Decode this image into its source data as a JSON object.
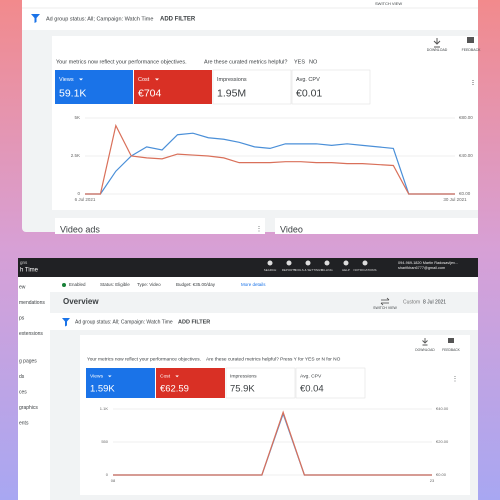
{
  "top": {
    "switch_view": "SWITCH VIEW",
    "filter": "Ad group status: All; Campaign: Watch Time",
    "add_filter": "ADD FILTER",
    "download": "DOWNLOAD",
    "feedback": "FEEDBACK",
    "metrics_note": "Your metrics now reflect your performance objectives.",
    "helpful": "Are these curated metrics helpful?",
    "yes": "YES",
    "no": "NO",
    "metrics": [
      {
        "label": "Views",
        "value": "59.1K"
      },
      {
        "label": "Cost",
        "value": "€704"
      },
      {
        "label": "Impressions",
        "value": "1.95M"
      },
      {
        "label": "Avg. CPV",
        "value": "€0.01"
      }
    ],
    "chart": {
      "type": "line",
      "categories": [
        "6 Jul 2021",
        null,
        null,
        null,
        null,
        null,
        null,
        null,
        null,
        null,
        null,
        null,
        null,
        null,
        null,
        null,
        null,
        null,
        null,
        null,
        null,
        null,
        null,
        null,
        "30 Jul 2021"
      ],
      "series": [
        {
          "color": "#4a8fd8",
          "values": [
            0,
            0,
            1500,
            2500,
            3100,
            2900,
            3900,
            4000,
            3700,
            3600,
            3400,
            3100,
            3000,
            3300,
            3300,
            3300,
            3200,
            3300,
            3200,
            3100,
            3000,
            0,
            0,
            0,
            0
          ]
        },
        {
          "color": "#d9705a",
          "axis": "y2",
          "values": [
            0,
            0,
            72,
            40,
            38,
            37,
            42,
            41,
            40,
            38,
            33,
            33,
            33,
            34,
            34,
            33,
            33,
            32,
            32,
            31,
            30,
            0,
            0,
            0,
            0
          ]
        }
      ],
      "ylim": [
        0,
        5000
      ],
      "yticks": [
        0,
        {
          "value": 2500,
          "label": "2.5K"
        },
        {
          "value": 5000,
          "label": "5K"
        }
      ],
      "y2lim": [
        0,
        80
      ],
      "y2ticks": [
        {
          "value": 0,
          "label": "€0.00"
        },
        {
          "value": 40,
          "label": "€40.00"
        },
        {
          "value": 80,
          "label": "€80.00"
        }
      ]
    },
    "cards": [
      "Video ads",
      "Video"
    ]
  },
  "bottom": {
    "crumbs": [
      "gns",
      "h Time"
    ],
    "nav_icons": [
      "SEARCH",
      "REPORTS",
      "TOOLS & SETTINGS",
      "BILLING",
      "HELP",
      "NOTIFICATIONS"
    ],
    "account": "094-969-1820 Martin Radosavljev...",
    "email": "sharifkhan6777@gmail.com",
    "sidebar": [
      "ew",
      "mendations",
      "ps",
      "extensions",
      "g pages",
      "ds",
      "ces",
      "graphics",
      "ents"
    ],
    "status": {
      "enabled": "Enabled",
      "state": "Status: Eligible",
      "type": "Type: Video",
      "budget": "Budget: €35.00/day",
      "more": "More details"
    },
    "overview": "Overview",
    "switch_view": "SWITCH VIEW",
    "custom": "Custom",
    "date": "8 Jul 2021",
    "filter": "Ad group status: All; Campaign: Watch Time",
    "add_filter": "ADD FILTER",
    "download": "DOWNLOAD",
    "feedback": "FEEDBACK",
    "metrics_note": "Your metrics now reflect your performance objectives.",
    "helpful": "Are these curated metrics helpful? Press Y for YES or N for NO",
    "metrics": [
      {
        "label": "Views",
        "value": "1.59K"
      },
      {
        "label": "Cost",
        "value": "€62.59"
      },
      {
        "label": "Impressions",
        "value": "75.9K"
      },
      {
        "label": "Avg. CPV",
        "value": "€0.04"
      }
    ],
    "chart": {
      "type": "line",
      "categories": [
        "08",
        null,
        null,
        null,
        null,
        null,
        null,
        null,
        null,
        null,
        null,
        null,
        null,
        null,
        null,
        "23"
      ],
      "series": [
        {
          "color": "#4a8fd8",
          "values": [
            0,
            0,
            0,
            0,
            0,
            0,
            0,
            0,
            1020,
            0,
            0,
            0,
            0,
            0,
            0,
            0
          ]
        },
        {
          "color": "#d9705a",
          "axis": "y2",
          "values": [
            0,
            0,
            0,
            0,
            0,
            0,
            0,
            0,
            38,
            0,
            0,
            0,
            0,
            0,
            0,
            0
          ]
        }
      ],
      "ylim": [
        0,
        1100
      ],
      "yticks": [
        0,
        550,
        {
          "value": 1100,
          "label": "1.1K"
        }
      ],
      "y2lim": [
        0,
        40
      ],
      "y2ticks": [
        {
          "value": 0,
          "label": "€0.00"
        },
        {
          "value": 20,
          "label": "€20.00"
        },
        {
          "value": 40,
          "label": "€40.00"
        }
      ]
    }
  }
}
